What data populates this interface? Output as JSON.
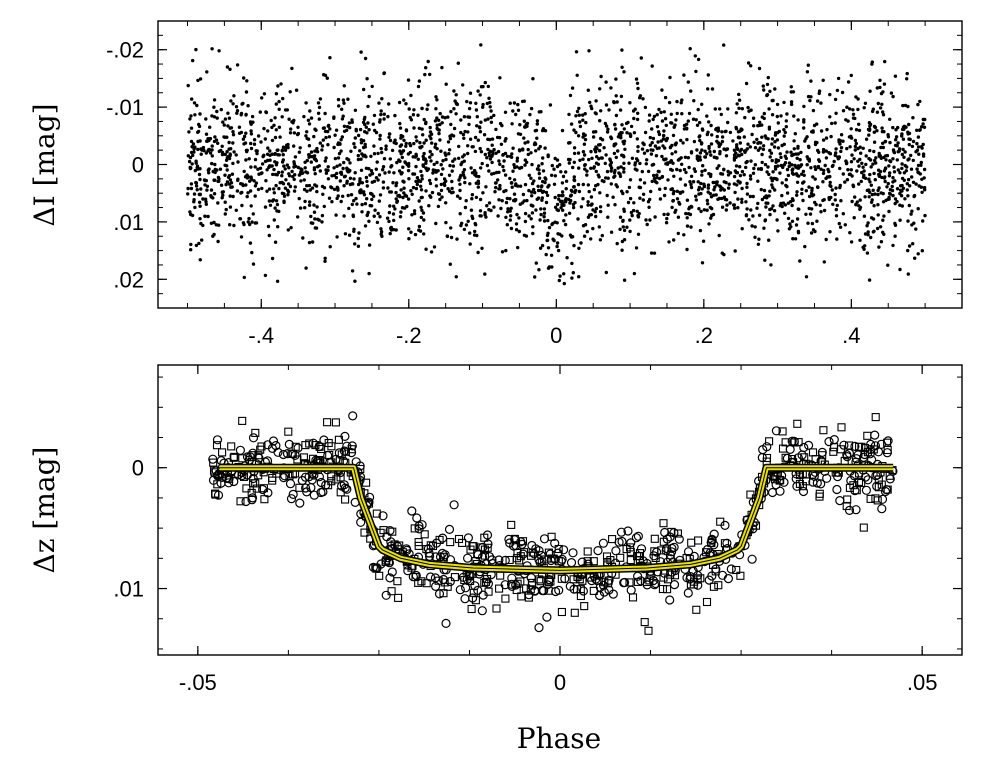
{
  "chart_data": [
    {
      "type": "scatter",
      "title": "",
      "xlabel": "",
      "ylabel": "ΔI  [mag]",
      "xlim": [
        -0.54,
        0.55
      ],
      "ylim": [
        0.025,
        -0.025
      ],
      "y_inverted": true,
      "xticks": [
        -0.4,
        -0.2,
        0,
        0.2,
        0.4
      ],
      "xtick_labels": [
        "-.4",
        "-.2",
        "0",
        ".2",
        ".4"
      ],
      "yticks": [
        -0.02,
        -0.01,
        0,
        0.01,
        0.02
      ],
      "ytick_labels": [
        "-.02",
        "-.01",
        "0",
        ".01",
        ".02"
      ],
      "marker": "small filled dots",
      "series": [
        {
          "n_points": 3000,
          "x_range": [
            -0.5,
            0.5
          ],
          "baseline": 0.0,
          "scatter_rms": 0.007,
          "eclipse": {
            "center": 0.0,
            "half_width": 0.03,
            "depth": 0.008
          }
        }
      ]
    },
    {
      "type": "scatter",
      "title": "",
      "xlabel": "Phase",
      "ylabel": "Δz  [mag]",
      "xlim": [
        -0.0555,
        0.0555
      ],
      "ylim": [
        0.0155,
        -0.0085
      ],
      "y_inverted": true,
      "xticks": [
        -0.05,
        0,
        0.05
      ],
      "xtick_labels": [
        "-.05",
        "0",
        ".05"
      ],
      "yticks": [
        0,
        0.01
      ],
      "ytick_labels": [
        "0",
        ".01"
      ],
      "marker": "open circles and open squares",
      "series": [
        {
          "n_points": 900,
          "x_range": [
            -0.048,
            0.046
          ],
          "baseline": 0.0,
          "scatter_rms": 0.0015
        }
      ],
      "model": {
        "color": "#e8e000",
        "x": [
          -0.047,
          -0.0285,
          -0.0275,
          -0.025,
          -0.0245,
          -0.022,
          -0.018,
          -0.012,
          -0.006,
          0.0,
          0.006,
          0.012,
          0.018,
          0.022,
          0.0245,
          0.025,
          0.0275,
          0.0285,
          0.046
        ],
        "y": [
          0.0,
          0.0,
          0.0025,
          0.0065,
          0.0068,
          0.0075,
          0.008,
          0.0083,
          0.0084,
          0.0085,
          0.0084,
          0.0083,
          0.008,
          0.0075,
          0.0068,
          0.0065,
          0.0025,
          0.0,
          0.0
        ]
      }
    }
  ]
}
